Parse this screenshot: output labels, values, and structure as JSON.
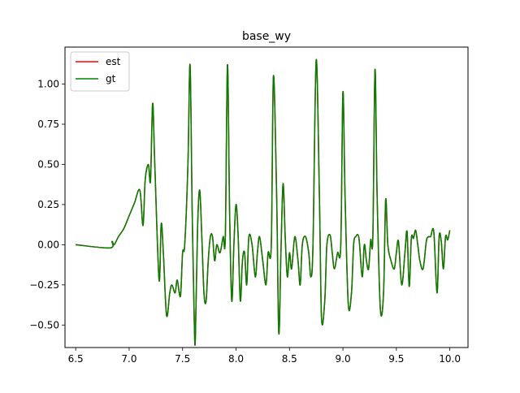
{
  "chart_data": {
    "type": "line",
    "title": "base_wy",
    "xlabel": "",
    "ylabel": "",
    "xlim": [
      6.4,
      10.17
    ],
    "ylim": [
      -0.64,
      1.23
    ],
    "x_ticks": [
      6.5,
      7.0,
      7.5,
      8.0,
      8.5,
      9.0,
      9.5,
      10.0
    ],
    "x_tick_labels": [
      "6.5",
      "7.0",
      "7.5",
      "8.0",
      "8.5",
      "9.0",
      "9.5",
      "10.0"
    ],
    "y_ticks": [
      -0.5,
      -0.25,
      0.0,
      0.25,
      0.5,
      0.75,
      1.0
    ],
    "y_tick_labels": [
      "−0.50",
      "−0.25",
      "0.00",
      "0.25",
      "0.50",
      "0.75",
      "1.00"
    ],
    "grid": false,
    "legend_position": "top-left",
    "series": [
      {
        "name": "est",
        "color": "#ff0000",
        "x": [
          6.5,
          6.82,
          6.84,
          6.86,
          6.9,
          6.95,
          7.0,
          7.05,
          7.1,
          7.13,
          7.15,
          7.18,
          7.2,
          7.22,
          7.24,
          7.28,
          7.3,
          7.32,
          7.35,
          7.38,
          7.4,
          7.43,
          7.45,
          7.48,
          7.5,
          7.52,
          7.55,
          7.57,
          7.59,
          7.61,
          7.62,
          7.64,
          7.66,
          7.68,
          7.7,
          7.72,
          7.74,
          7.76,
          7.78,
          7.8,
          7.82,
          7.85,
          7.88,
          7.9,
          7.92,
          7.94,
          7.96,
          7.98,
          8.0,
          8.02,
          8.04,
          8.06,
          8.08,
          8.1,
          8.12,
          8.15,
          8.18,
          8.2,
          8.22,
          8.25,
          8.28,
          8.3,
          8.33,
          8.35,
          8.38,
          8.4,
          8.42,
          8.44,
          8.46,
          8.48,
          8.5,
          8.52,
          8.55,
          8.58,
          8.6,
          8.62,
          8.65,
          8.68,
          8.7,
          8.72,
          8.75,
          8.78,
          8.8,
          8.83,
          8.85,
          8.88,
          8.9,
          8.92,
          8.95,
          8.98,
          9.0,
          9.02,
          9.05,
          9.08,
          9.1,
          9.12,
          9.15,
          9.18,
          9.2,
          9.22,
          9.24,
          9.26,
          9.28,
          9.3,
          9.32,
          9.35,
          9.38,
          9.4,
          9.42,
          9.45,
          9.48,
          9.5,
          9.52,
          9.55,
          9.58,
          9.6,
          9.62,
          9.64,
          9.66,
          9.68,
          9.7,
          9.72,
          9.75,
          9.78,
          9.8,
          9.82,
          9.85,
          9.88,
          9.9,
          9.92,
          9.94,
          9.96,
          9.98,
          10.0
        ],
        "y": [
          0.0,
          -0.02,
          0.02,
          0.0,
          0.05,
          0.1,
          0.18,
          0.26,
          0.34,
          0.12,
          0.4,
          0.5,
          0.4,
          0.88,
          0.5,
          -0.22,
          0.13,
          -0.05,
          -0.44,
          -0.3,
          -0.25,
          -0.3,
          -0.22,
          -0.32,
          -0.05,
          0.0,
          0.5,
          1.12,
          0.2,
          -0.5,
          -0.57,
          0.1,
          0.34,
          0.05,
          -0.3,
          -0.35,
          -0.1,
          0.05,
          0.05,
          -0.1,
          0.0,
          -0.05,
          0.05,
          0.05,
          1.12,
          0.2,
          -0.35,
          0.0,
          0.25,
          0.05,
          -0.35,
          -0.1,
          -0.05,
          -0.25,
          0.05,
          0.0,
          -0.2,
          -0.05,
          0.05,
          -0.1,
          -0.25,
          -0.05,
          0.0,
          1.05,
          0.3,
          -0.55,
          -0.05,
          0.38,
          0.05,
          -0.2,
          -0.05,
          -0.15,
          0.05,
          -0.1,
          -0.25,
          0.0,
          0.05,
          -0.05,
          -0.2,
          0.0,
          1.15,
          0.3,
          -0.46,
          -0.35,
          0.0,
          0.06,
          -0.05,
          -0.15,
          -0.05,
          0.0,
          0.95,
          0.3,
          -0.37,
          -0.3,
          0.0,
          0.05,
          0.04,
          -0.2,
          0.0,
          -0.1,
          -0.15,
          0.03,
          0.05,
          1.09,
          0.3,
          -0.4,
          -0.3,
          0.28,
          0.0,
          -0.1,
          -0.15,
          -0.05,
          0.02,
          -0.25,
          -0.05,
          0.08,
          -0.26,
          0.04,
          0.04,
          0.09,
          0.0,
          -0.1,
          -0.15,
          0.02,
          0.05,
          0.05,
          0.08,
          -0.3,
          0.05,
          0.02,
          -0.15,
          0.05,
          0.03,
          0.09
        ]
      },
      {
        "name": "gt",
        "color": "#008000",
        "x": [
          6.5,
          6.82,
          6.84,
          6.86,
          6.9,
          6.95,
          7.0,
          7.05,
          7.1,
          7.13,
          7.15,
          7.18,
          7.2,
          7.22,
          7.24,
          7.28,
          7.3,
          7.32,
          7.35,
          7.38,
          7.4,
          7.43,
          7.45,
          7.48,
          7.5,
          7.52,
          7.55,
          7.57,
          7.59,
          7.61,
          7.62,
          7.64,
          7.66,
          7.68,
          7.7,
          7.72,
          7.74,
          7.76,
          7.78,
          7.8,
          7.82,
          7.85,
          7.88,
          7.9,
          7.92,
          7.94,
          7.96,
          7.98,
          8.0,
          8.02,
          8.04,
          8.06,
          8.08,
          8.1,
          8.12,
          8.15,
          8.18,
          8.2,
          8.22,
          8.25,
          8.28,
          8.3,
          8.33,
          8.35,
          8.38,
          8.4,
          8.42,
          8.44,
          8.46,
          8.48,
          8.5,
          8.52,
          8.55,
          8.58,
          8.6,
          8.62,
          8.65,
          8.68,
          8.7,
          8.72,
          8.75,
          8.78,
          8.8,
          8.83,
          8.85,
          8.88,
          8.9,
          8.92,
          8.95,
          8.98,
          9.0,
          9.02,
          9.05,
          9.08,
          9.1,
          9.12,
          9.15,
          9.18,
          9.2,
          9.22,
          9.24,
          9.26,
          9.28,
          9.3,
          9.32,
          9.35,
          9.38,
          9.4,
          9.42,
          9.45,
          9.48,
          9.5,
          9.52,
          9.55,
          9.58,
          9.6,
          9.62,
          9.64,
          9.66,
          9.68,
          9.7,
          9.72,
          9.75,
          9.78,
          9.8,
          9.82,
          9.85,
          9.88,
          9.9,
          9.92,
          9.94,
          9.96,
          9.98,
          10.0
        ],
        "y": [
          0.0,
          -0.02,
          0.02,
          0.0,
          0.05,
          0.1,
          0.18,
          0.26,
          0.34,
          0.12,
          0.4,
          0.5,
          0.4,
          0.88,
          0.5,
          -0.22,
          0.13,
          -0.05,
          -0.44,
          -0.3,
          -0.25,
          -0.3,
          -0.22,
          -0.32,
          -0.05,
          0.0,
          0.5,
          1.12,
          0.2,
          -0.5,
          -0.57,
          0.1,
          0.34,
          0.05,
          -0.3,
          -0.35,
          -0.1,
          0.05,
          0.05,
          -0.1,
          0.0,
          -0.05,
          0.05,
          0.05,
          1.12,
          0.2,
          -0.35,
          0.0,
          0.25,
          0.05,
          -0.35,
          -0.1,
          -0.05,
          -0.25,
          0.05,
          0.0,
          -0.2,
          -0.05,
          0.05,
          -0.1,
          -0.25,
          -0.05,
          0.0,
          1.05,
          0.3,
          -0.55,
          -0.05,
          0.38,
          0.05,
          -0.2,
          -0.05,
          -0.15,
          0.05,
          -0.1,
          -0.25,
          0.0,
          0.05,
          -0.05,
          -0.2,
          0.0,
          1.15,
          0.3,
          -0.46,
          -0.35,
          0.0,
          0.06,
          -0.05,
          -0.15,
          -0.05,
          0.0,
          0.95,
          0.3,
          -0.37,
          -0.3,
          0.0,
          0.05,
          0.04,
          -0.2,
          0.0,
          -0.1,
          -0.15,
          0.03,
          0.05,
          1.09,
          0.3,
          -0.4,
          -0.3,
          0.28,
          0.0,
          -0.1,
          -0.15,
          -0.05,
          0.02,
          -0.25,
          -0.05,
          0.08,
          -0.26,
          0.04,
          0.04,
          0.09,
          0.0,
          -0.1,
          -0.15,
          0.02,
          0.05,
          0.05,
          0.08,
          -0.3,
          0.05,
          0.02,
          -0.15,
          0.05,
          0.03,
          0.09
        ]
      }
    ]
  }
}
